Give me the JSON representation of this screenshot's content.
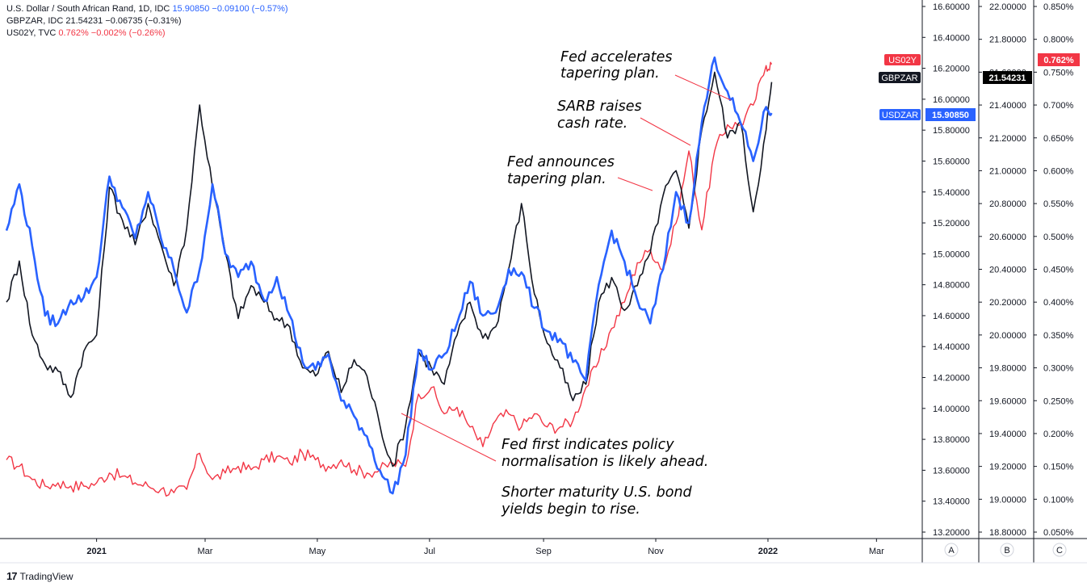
{
  "legend": [
    {
      "symbol": "U.S. Dollar / South African Rand, 1D, IDC",
      "value": "15.90850",
      "change": "−0.09100 (−0.57%)",
      "color": "#2962ff"
    },
    {
      "symbol": "GBPZAR, IDC",
      "value": "21.54231",
      "change": "−0.06735 (−0.31%)",
      "color": "#131722"
    },
    {
      "symbol": "US02Y, TVC",
      "value": "0.762%",
      "change": "−0.002% (−0.26%)",
      "color": "#f23645"
    }
  ],
  "branding": {
    "name": "TradingView"
  },
  "price_labels": {
    "us02y_tag": "US02Y",
    "gbpzar_tag": "GBPZAR",
    "usdzar_tag": "USDZAR",
    "gbpzar_value": "21.54231",
    "usdzar_value": "15.90850",
    "us02y_value": "0.762%"
  },
  "scale_letters": [
    "A",
    "B",
    "C"
  ],
  "annotations": [
    {
      "lines": [
        "Fed accelerates",
        "tapering plan."
      ]
    },
    {
      "lines": [
        "SARB raises",
        "cash rate."
      ]
    },
    {
      "lines": [
        "Fed announces",
        "tapering plan."
      ]
    },
    {
      "lines": [
        "Fed first indicates policy",
        "normalisation is likely ahead."
      ]
    },
    {
      "lines": [
        "Shorter maturity U.S. bond",
        "yields begin to rise."
      ]
    }
  ],
  "chart_data": {
    "type": "line",
    "x_tick_labels": [
      "2021",
      "Mar",
      "May",
      "Jul",
      "Sep",
      "Nov",
      "2022",
      "Mar"
    ],
    "x_range": [
      "2020-11-13",
      "2022-03-25"
    ],
    "axes": {
      "A": {
        "series": "USDZAR",
        "range": [
          13.2,
          16.6
        ],
        "ticks": [
          "13.20000",
          "13.40000",
          "13.60000",
          "13.80000",
          "14.00000",
          "14.20000",
          "14.40000",
          "14.60000",
          "14.80000",
          "15.00000",
          "15.20000",
          "15.40000",
          "15.60000",
          "15.80000",
          "16.00000",
          "16.20000",
          "16.40000",
          "16.60000"
        ]
      },
      "B": {
        "series": "GBPZAR",
        "range": [
          18.8,
          22.0
        ],
        "ticks": [
          "18.80000",
          "19.00000",
          "19.20000",
          "19.40000",
          "19.60000",
          "19.80000",
          "20.00000",
          "20.20000",
          "20.40000",
          "20.60000",
          "20.80000",
          "21.00000",
          "21.20000",
          "21.40000",
          "21.60000",
          "21.80000",
          "22.00000"
        ]
      },
      "C": {
        "series": "US02Y",
        "range": [
          0.05,
          0.85
        ],
        "unit": "%",
        "ticks": [
          "0.050%",
          "0.100%",
          "0.150%",
          "0.200%",
          "0.250%",
          "0.300%",
          "0.350%",
          "0.400%",
          "0.450%",
          "0.500%",
          "0.550%",
          "0.600%",
          "0.650%",
          "0.700%",
          "0.750%",
          "0.800%",
          "0.850%"
        ]
      }
    },
    "series": [
      {
        "name": "USDZAR",
        "axis": "A",
        "color": "#2962ff",
        "x": [
          "2020-11-13",
          "2020-11-20",
          "2020-11-27",
          "2020-12-04",
          "2020-12-11",
          "2020-12-18",
          "2020-12-25",
          "2021-01-01",
          "2021-01-08",
          "2021-01-15",
          "2021-01-22",
          "2021-01-29",
          "2021-02-05",
          "2021-02-12",
          "2021-02-19",
          "2021-02-26",
          "2021-03-05",
          "2021-03-12",
          "2021-03-19",
          "2021-03-26",
          "2021-04-02",
          "2021-04-09",
          "2021-04-16",
          "2021-04-23",
          "2021-04-30",
          "2021-05-07",
          "2021-05-14",
          "2021-05-21",
          "2021-05-28",
          "2021-06-04",
          "2021-06-11",
          "2021-06-18",
          "2021-06-25",
          "2021-07-02",
          "2021-07-09",
          "2021-07-16",
          "2021-07-23",
          "2021-07-30",
          "2021-08-06",
          "2021-08-13",
          "2021-08-20",
          "2021-08-27",
          "2021-09-03",
          "2021-09-10",
          "2021-09-17",
          "2021-09-24",
          "2021-10-01",
          "2021-10-08",
          "2021-10-15",
          "2021-10-22",
          "2021-10-29",
          "2021-11-05",
          "2021-11-12",
          "2021-11-19",
          "2021-11-26",
          "2021-12-03",
          "2021-12-10",
          "2021-12-17",
          "2021-12-24",
          "2021-12-31",
          "2022-01-03"
        ],
        "values": [
          15.15,
          15.45,
          15.05,
          14.6,
          14.55,
          14.7,
          14.72,
          14.85,
          15.5,
          15.3,
          15.1,
          15.4,
          15.1,
          14.9,
          14.62,
          14.9,
          15.45,
          15.0,
          14.85,
          14.95,
          14.7,
          14.85,
          14.6,
          14.3,
          14.25,
          14.35,
          14.05,
          13.95,
          13.82,
          13.6,
          13.45,
          13.7,
          14.38,
          14.25,
          14.35,
          14.55,
          14.82,
          14.6,
          14.62,
          14.9,
          14.88,
          14.65,
          14.5,
          14.45,
          14.3,
          14.18,
          14.8,
          15.15,
          14.95,
          14.7,
          14.55,
          14.9,
          15.4,
          15.2,
          15.85,
          16.27,
          16.05,
          15.85,
          15.6,
          15.95,
          15.91
        ]
      },
      {
        "name": "GBPZAR",
        "axis": "B",
        "color": "#131722",
        "x": [
          "2020-11-13",
          "2020-11-20",
          "2020-11-27",
          "2020-12-04",
          "2020-12-11",
          "2020-12-18",
          "2020-12-25",
          "2021-01-01",
          "2021-01-08",
          "2021-01-15",
          "2021-01-22",
          "2021-01-29",
          "2021-02-05",
          "2021-02-12",
          "2021-02-19",
          "2021-02-26",
          "2021-03-05",
          "2021-03-12",
          "2021-03-19",
          "2021-03-26",
          "2021-04-02",
          "2021-04-09",
          "2021-04-16",
          "2021-04-23",
          "2021-04-30",
          "2021-05-07",
          "2021-05-14",
          "2021-05-21",
          "2021-05-28",
          "2021-06-04",
          "2021-06-11",
          "2021-06-18",
          "2021-06-25",
          "2021-07-02",
          "2021-07-09",
          "2021-07-16",
          "2021-07-23",
          "2021-07-30",
          "2021-08-06",
          "2021-08-13",
          "2021-08-20",
          "2021-08-27",
          "2021-09-03",
          "2021-09-10",
          "2021-09-17",
          "2021-09-24",
          "2021-10-01",
          "2021-10-08",
          "2021-10-15",
          "2021-10-22",
          "2021-10-29",
          "2021-11-05",
          "2021-11-12",
          "2021-11-19",
          "2021-11-26",
          "2021-12-03",
          "2021-12-10",
          "2021-12-17",
          "2021-12-24",
          "2021-12-31",
          "2022-01-03"
        ],
        "values": [
          20.2,
          20.45,
          20.0,
          19.82,
          19.78,
          19.62,
          19.9,
          20.0,
          20.9,
          20.7,
          20.55,
          20.8,
          20.55,
          20.3,
          20.65,
          21.4,
          20.9,
          20.5,
          20.1,
          20.3,
          20.2,
          20.1,
          20.05,
          19.8,
          19.75,
          19.9,
          19.65,
          19.85,
          19.75,
          19.45,
          19.2,
          19.45,
          19.9,
          19.8,
          19.7,
          20.0,
          20.2,
          19.98,
          20.05,
          20.4,
          20.8,
          20.25,
          19.95,
          19.8,
          19.6,
          19.7,
          20.2,
          20.35,
          20.15,
          20.3,
          20.5,
          20.85,
          21.0,
          20.65,
          21.25,
          21.6,
          21.2,
          21.3,
          20.75,
          21.25,
          21.54
        ]
      },
      {
        "name": "US02Y",
        "axis": "C",
        "color": "#f23645",
        "x": [
          "2020-11-13",
          "2020-11-20",
          "2020-11-27",
          "2020-12-04",
          "2020-12-11",
          "2020-12-18",
          "2020-12-25",
          "2021-01-01",
          "2021-01-08",
          "2021-01-15",
          "2021-01-22",
          "2021-01-29",
          "2021-02-05",
          "2021-02-12",
          "2021-02-19",
          "2021-02-26",
          "2021-03-05",
          "2021-03-12",
          "2021-03-19",
          "2021-03-26",
          "2021-04-02",
          "2021-04-09",
          "2021-04-16",
          "2021-04-23",
          "2021-04-30",
          "2021-05-07",
          "2021-05-14",
          "2021-05-21",
          "2021-05-28",
          "2021-06-04",
          "2021-06-11",
          "2021-06-18",
          "2021-06-25",
          "2021-07-02",
          "2021-07-09",
          "2021-07-16",
          "2021-07-23",
          "2021-07-30",
          "2021-08-06",
          "2021-08-13",
          "2021-08-20",
          "2021-08-27",
          "2021-09-03",
          "2021-09-10",
          "2021-09-17",
          "2021-09-24",
          "2021-10-01",
          "2021-10-08",
          "2021-10-15",
          "2021-10-22",
          "2021-10-29",
          "2021-11-05",
          "2021-11-12",
          "2021-11-19",
          "2021-11-26",
          "2021-12-03",
          "2021-12-10",
          "2021-12-17",
          "2021-12-24",
          "2021-12-31",
          "2022-01-03"
        ],
        "values": [
          0.16,
          0.15,
          0.13,
          0.12,
          0.125,
          0.12,
          0.12,
          0.125,
          0.14,
          0.135,
          0.125,
          0.12,
          0.115,
          0.11,
          0.115,
          0.17,
          0.13,
          0.14,
          0.15,
          0.145,
          0.16,
          0.165,
          0.155,
          0.17,
          0.16,
          0.15,
          0.16,
          0.145,
          0.14,
          0.145,
          0.155,
          0.15,
          0.26,
          0.27,
          0.23,
          0.24,
          0.21,
          0.18,
          0.22,
          0.23,
          0.21,
          0.23,
          0.21,
          0.21,
          0.22,
          0.27,
          0.31,
          0.36,
          0.4,
          0.46,
          0.48,
          0.45,
          0.52,
          0.63,
          0.51,
          0.63,
          0.67,
          0.67,
          0.7,
          0.76,
          0.762
        ]
      }
    ]
  }
}
